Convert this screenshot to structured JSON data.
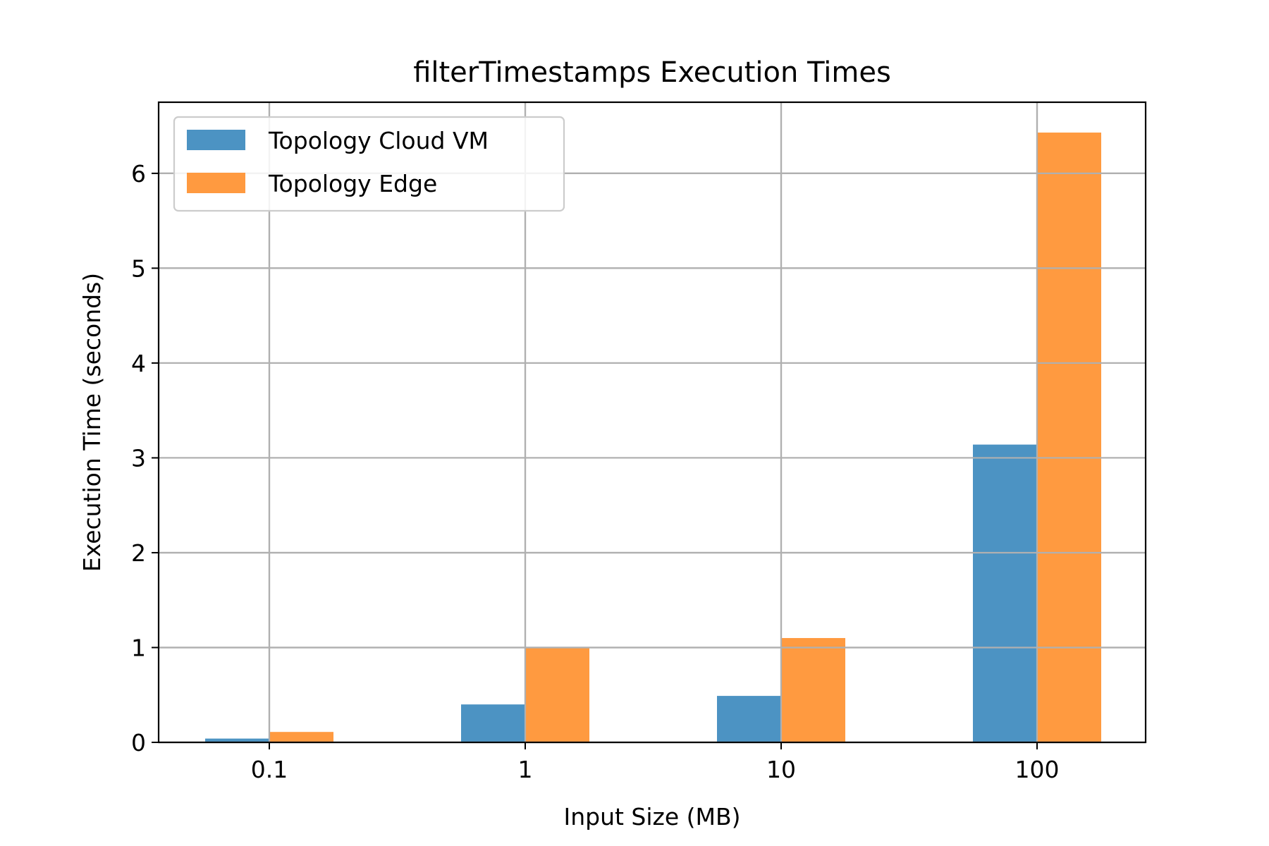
{
  "chart_data": {
    "type": "bar",
    "title": "filterTimestamps Execution Times",
    "xlabel": "Input Size (MB)",
    "ylabel": "Execution Time (seconds)",
    "categories": [
      "0.1",
      "1",
      "10",
      "100"
    ],
    "series": [
      {
        "name": "Topology Cloud VM",
        "color": "#4c93c3",
        "values": [
          0.04,
          0.4,
          0.49,
          3.14
        ]
      },
      {
        "name": "Topology Edge",
        "color": "#ff9a40",
        "values": [
          0.11,
          1.0,
          1.1,
          6.43
        ]
      }
    ],
    "ylim": [
      0,
      6.75
    ],
    "yticks": [
      0,
      1,
      2,
      3,
      4,
      5,
      6
    ],
    "grid": true,
    "legend_position": "top-left"
  }
}
